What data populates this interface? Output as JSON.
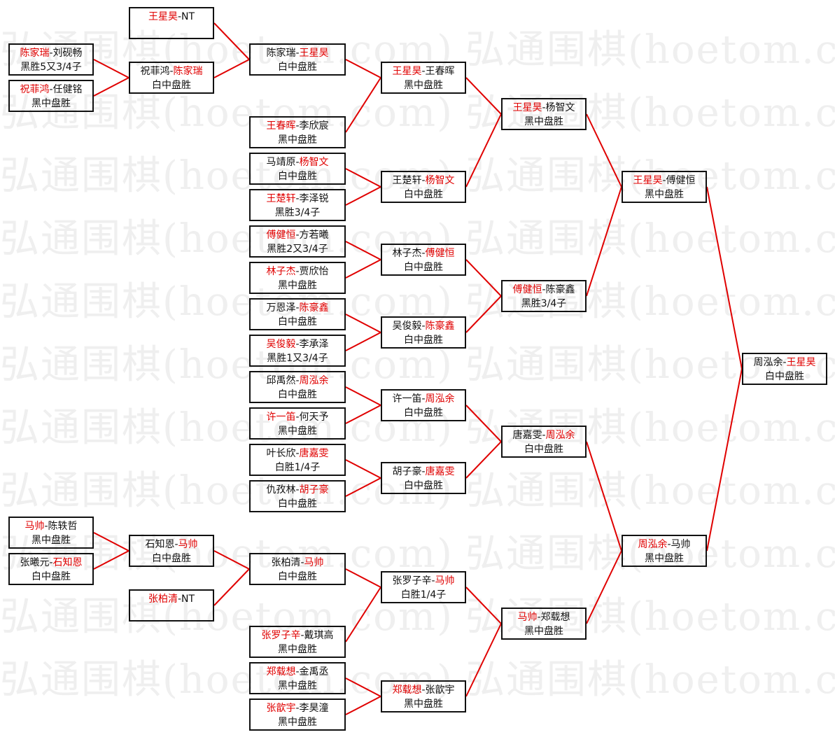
{
  "watermark": "弘通围棋(hoetom.com)",
  "colors": {
    "winner": "#e00000",
    "line": "#e00000",
    "border": "#111111",
    "watermark": "#efefef"
  },
  "separator": "-",
  "matches": [
    {
      "id": "m1",
      "a": "陈家瑞",
      "b": "刘砚畅",
      "winner": "a",
      "result": "黑胜5又3/4子",
      "next": "s2"
    },
    {
      "id": "m2",
      "a": "祝菲鸿",
      "b": "任健铭",
      "winner": "a",
      "result": "黑中盘胜",
      "next": "s2"
    },
    {
      "id": "m3",
      "a": "马帅",
      "b": "陈轶哲",
      "winner": "a",
      "result": "黑中盘胜",
      "next": "s3"
    },
    {
      "id": "m4",
      "a": "张曦元",
      "b": "石知恩",
      "winner": "b",
      "result": "白中盘胜",
      "next": "s3"
    },
    {
      "id": "s1",
      "a": "王星昊",
      "b": "NT",
      "winner": "a",
      "result": "",
      "next": "t1"
    },
    {
      "id": "s2",
      "a": "祝菲鸿",
      "b": "陈家瑞",
      "winner": "b",
      "result": "白中盘胜",
      "next": "t1"
    },
    {
      "id": "s3",
      "a": "石知恩",
      "b": "马帅",
      "winner": "b",
      "result": "白中盘胜",
      "next": "t13"
    },
    {
      "id": "s4",
      "a": "张柏清",
      "b": "NT",
      "winner": "a",
      "result": "",
      "next": "t13"
    },
    {
      "id": "t1",
      "a": "陈家瑞",
      "b": "王星昊",
      "winner": "b",
      "result": "白中盘胜",
      "next": "u1"
    },
    {
      "id": "t2",
      "a": "王春晖",
      "b": "李欣宸",
      "winner": "a",
      "result": "黑中盘胜",
      "next": "u1"
    },
    {
      "id": "t3",
      "a": "马靖原",
      "b": "杨智文",
      "winner": "b",
      "result": "白中盘胜",
      "next": "u2"
    },
    {
      "id": "t4",
      "a": "王楚轩",
      "b": "李泽锐",
      "winner": "a",
      "result": "黑胜3/4子",
      "next": "u2"
    },
    {
      "id": "t5",
      "a": "傅健恒",
      "b": "方若曦",
      "winner": "a",
      "result": "黑胜2又3/4子",
      "next": "u3"
    },
    {
      "id": "t6",
      "a": "林子杰",
      "b": "贾欣怡",
      "winner": "a",
      "result": "黑中盘胜",
      "next": "u3"
    },
    {
      "id": "t7",
      "a": "万恩泽",
      "b": "陈豪鑫",
      "winner": "b",
      "result": "白中盘胜",
      "next": "u4"
    },
    {
      "id": "t8",
      "a": "吴俊毅",
      "b": "李承泽",
      "winner": "a",
      "result": "黑胜1又3/4子",
      "next": "u4"
    },
    {
      "id": "t9",
      "a": "邱禹然",
      "b": "周泓余",
      "winner": "b",
      "result": "白中盘胜",
      "next": "u5"
    },
    {
      "id": "t10",
      "a": "许一笛",
      "b": "何天予",
      "winner": "a",
      "result": "黑中盘胜",
      "next": "u5"
    },
    {
      "id": "t11",
      "a": "叶长欣",
      "b": "唐嘉雯",
      "winner": "b",
      "result": "白胜1/4子",
      "next": "u6"
    },
    {
      "id": "t12",
      "a": "仇孜林",
      "b": "胡子豪",
      "winner": "b",
      "result": "白中盘胜",
      "next": "u6"
    },
    {
      "id": "t13",
      "a": "张柏清",
      "b": "马帅",
      "winner": "b",
      "result": "白中盘胜",
      "next": "u7"
    },
    {
      "id": "t14",
      "a": "张罗子辛",
      "b": "戴琪高",
      "winner": "a",
      "result": "黑中盘胜",
      "next": "u7"
    },
    {
      "id": "t15",
      "a": "郑载想",
      "b": "金禹丞",
      "winner": "a",
      "result": "黑中盘胜",
      "next": "u8"
    },
    {
      "id": "t16",
      "a": "张歆宇",
      "b": "李昊潼",
      "winner": "a",
      "result": "黑中盘胜",
      "next": "u8"
    },
    {
      "id": "u1",
      "a": "王星昊",
      "b": "王春晖",
      "winner": "a",
      "result": "黑中盘胜",
      "next": "v1"
    },
    {
      "id": "u2",
      "a": "王楚轩",
      "b": "杨智文",
      "winner": "b",
      "result": "白中盘胜",
      "next": "v1"
    },
    {
      "id": "u3",
      "a": "林子杰",
      "b": "傅健恒",
      "winner": "b",
      "result": "白中盘胜",
      "next": "v2"
    },
    {
      "id": "u4",
      "a": "吴俊毅",
      "b": "陈豪鑫",
      "winner": "b",
      "result": "白中盘胜",
      "next": "v2"
    },
    {
      "id": "u5",
      "a": "许一笛",
      "b": "周泓余",
      "winner": "b",
      "result": "白中盘胜",
      "next": "v3"
    },
    {
      "id": "u6",
      "a": "胡子豪",
      "b": "唐嘉雯",
      "winner": "b",
      "result": "白中盘胜",
      "next": "v3"
    },
    {
      "id": "u7",
      "a": "张罗子辛",
      "b": "马帅",
      "winner": "b",
      "result": "白胜1/4子",
      "next": "v4"
    },
    {
      "id": "u8",
      "a": "郑载想",
      "b": "张歆宇",
      "winner": "a",
      "result": "黑中盘胜",
      "next": "v4"
    },
    {
      "id": "v1",
      "a": "王星昊",
      "b": "杨智文",
      "winner": "a",
      "result": "黑中盘胜",
      "next": "w1"
    },
    {
      "id": "v2",
      "a": "傅健恒",
      "b": "陈豪鑫",
      "winner": "a",
      "result": "黑胜3/4子",
      "next": "w1"
    },
    {
      "id": "v3",
      "a": "唐嘉雯",
      "b": "周泓余",
      "winner": "b",
      "result": "白中盘胜",
      "next": "w2"
    },
    {
      "id": "v4",
      "a": "马帅",
      "b": "郑载想",
      "winner": "a",
      "result": "黑中盘胜",
      "next": "w2"
    },
    {
      "id": "w1",
      "a": "王星昊",
      "b": "傅健恒",
      "winner": "a",
      "result": "黑中盘胜",
      "next": "f"
    },
    {
      "id": "w2",
      "a": "周泓余",
      "b": "马帅",
      "winner": "a",
      "result": "黑中盘胜",
      "next": "f"
    },
    {
      "id": "f",
      "a": "周泓余",
      "b": "王星昊",
      "winner": "b",
      "result": "白中盘胜",
      "next": ""
    }
  ]
}
